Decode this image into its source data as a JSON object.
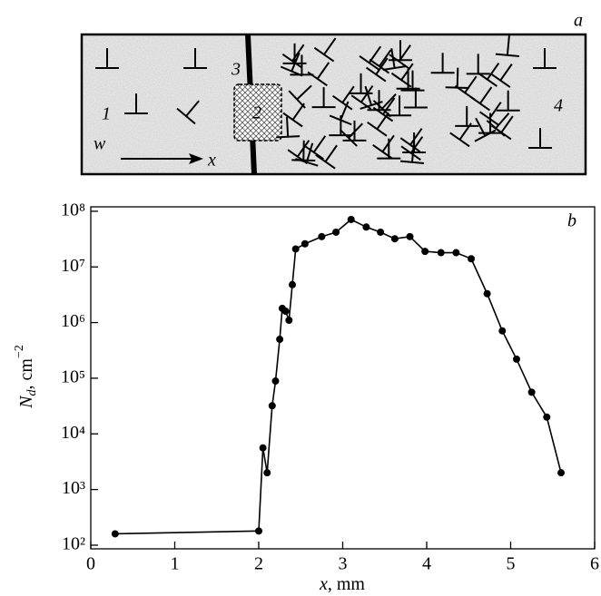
{
  "panel_a": {
    "label": "a",
    "region_labels": [
      "1",
      "2",
      "3",
      "4"
    ],
    "width_label": "w",
    "axis_label": "x"
  },
  "chart_data": {
    "type": "line",
    "panel_label": "b",
    "x_label": [
      "x",
      ", mm"
    ],
    "y_label": [
      "N",
      "d",
      ", cm",
      "−2"
    ],
    "x": [
      0.29,
      2.0,
      2.05,
      2.1,
      2.16,
      2.2,
      2.25,
      2.28,
      2.32,
      2.36,
      2.4,
      2.44,
      2.55,
      2.75,
      2.92,
      3.1,
      3.28,
      3.45,
      3.62,
      3.8,
      3.98,
      4.17,
      4.35,
      4.53,
      4.72,
      4.9,
      5.07,
      5.25,
      5.43,
      5.6
    ],
    "values": [
      160,
      180,
      5600,
      2000,
      32000,
      89000,
      500000,
      1800000,
      1600000,
      1100000,
      4800000,
      21000000,
      26000000,
      35000000,
      42000000,
      71000000,
      52000000,
      42000000,
      32000000,
      35000000,
      19000000,
      18000000,
      18000000,
      14000000,
      3300000,
      710000,
      220000,
      56000,
      20000,
      2000
    ],
    "color": "#000000",
    "log_y": true,
    "xlim": [
      0,
      6
    ],
    "xticks": [
      0,
      1,
      2,
      3,
      4,
      5,
      6
    ],
    "ylim": [
      86,
      120000000
    ],
    "yticks": [
      {
        "value": 100,
        "label": "10²"
      },
      {
        "value": 1000,
        "label": "10³"
      },
      {
        "value": 10000,
        "label": "10⁴"
      },
      {
        "value": 100000,
        "label": "10⁵"
      },
      {
        "value": 1000000,
        "label": "10⁶"
      },
      {
        "value": 10000000,
        "label": "10⁷"
      },
      {
        "value": 100000000,
        "label": "10⁸"
      }
    ]
  }
}
